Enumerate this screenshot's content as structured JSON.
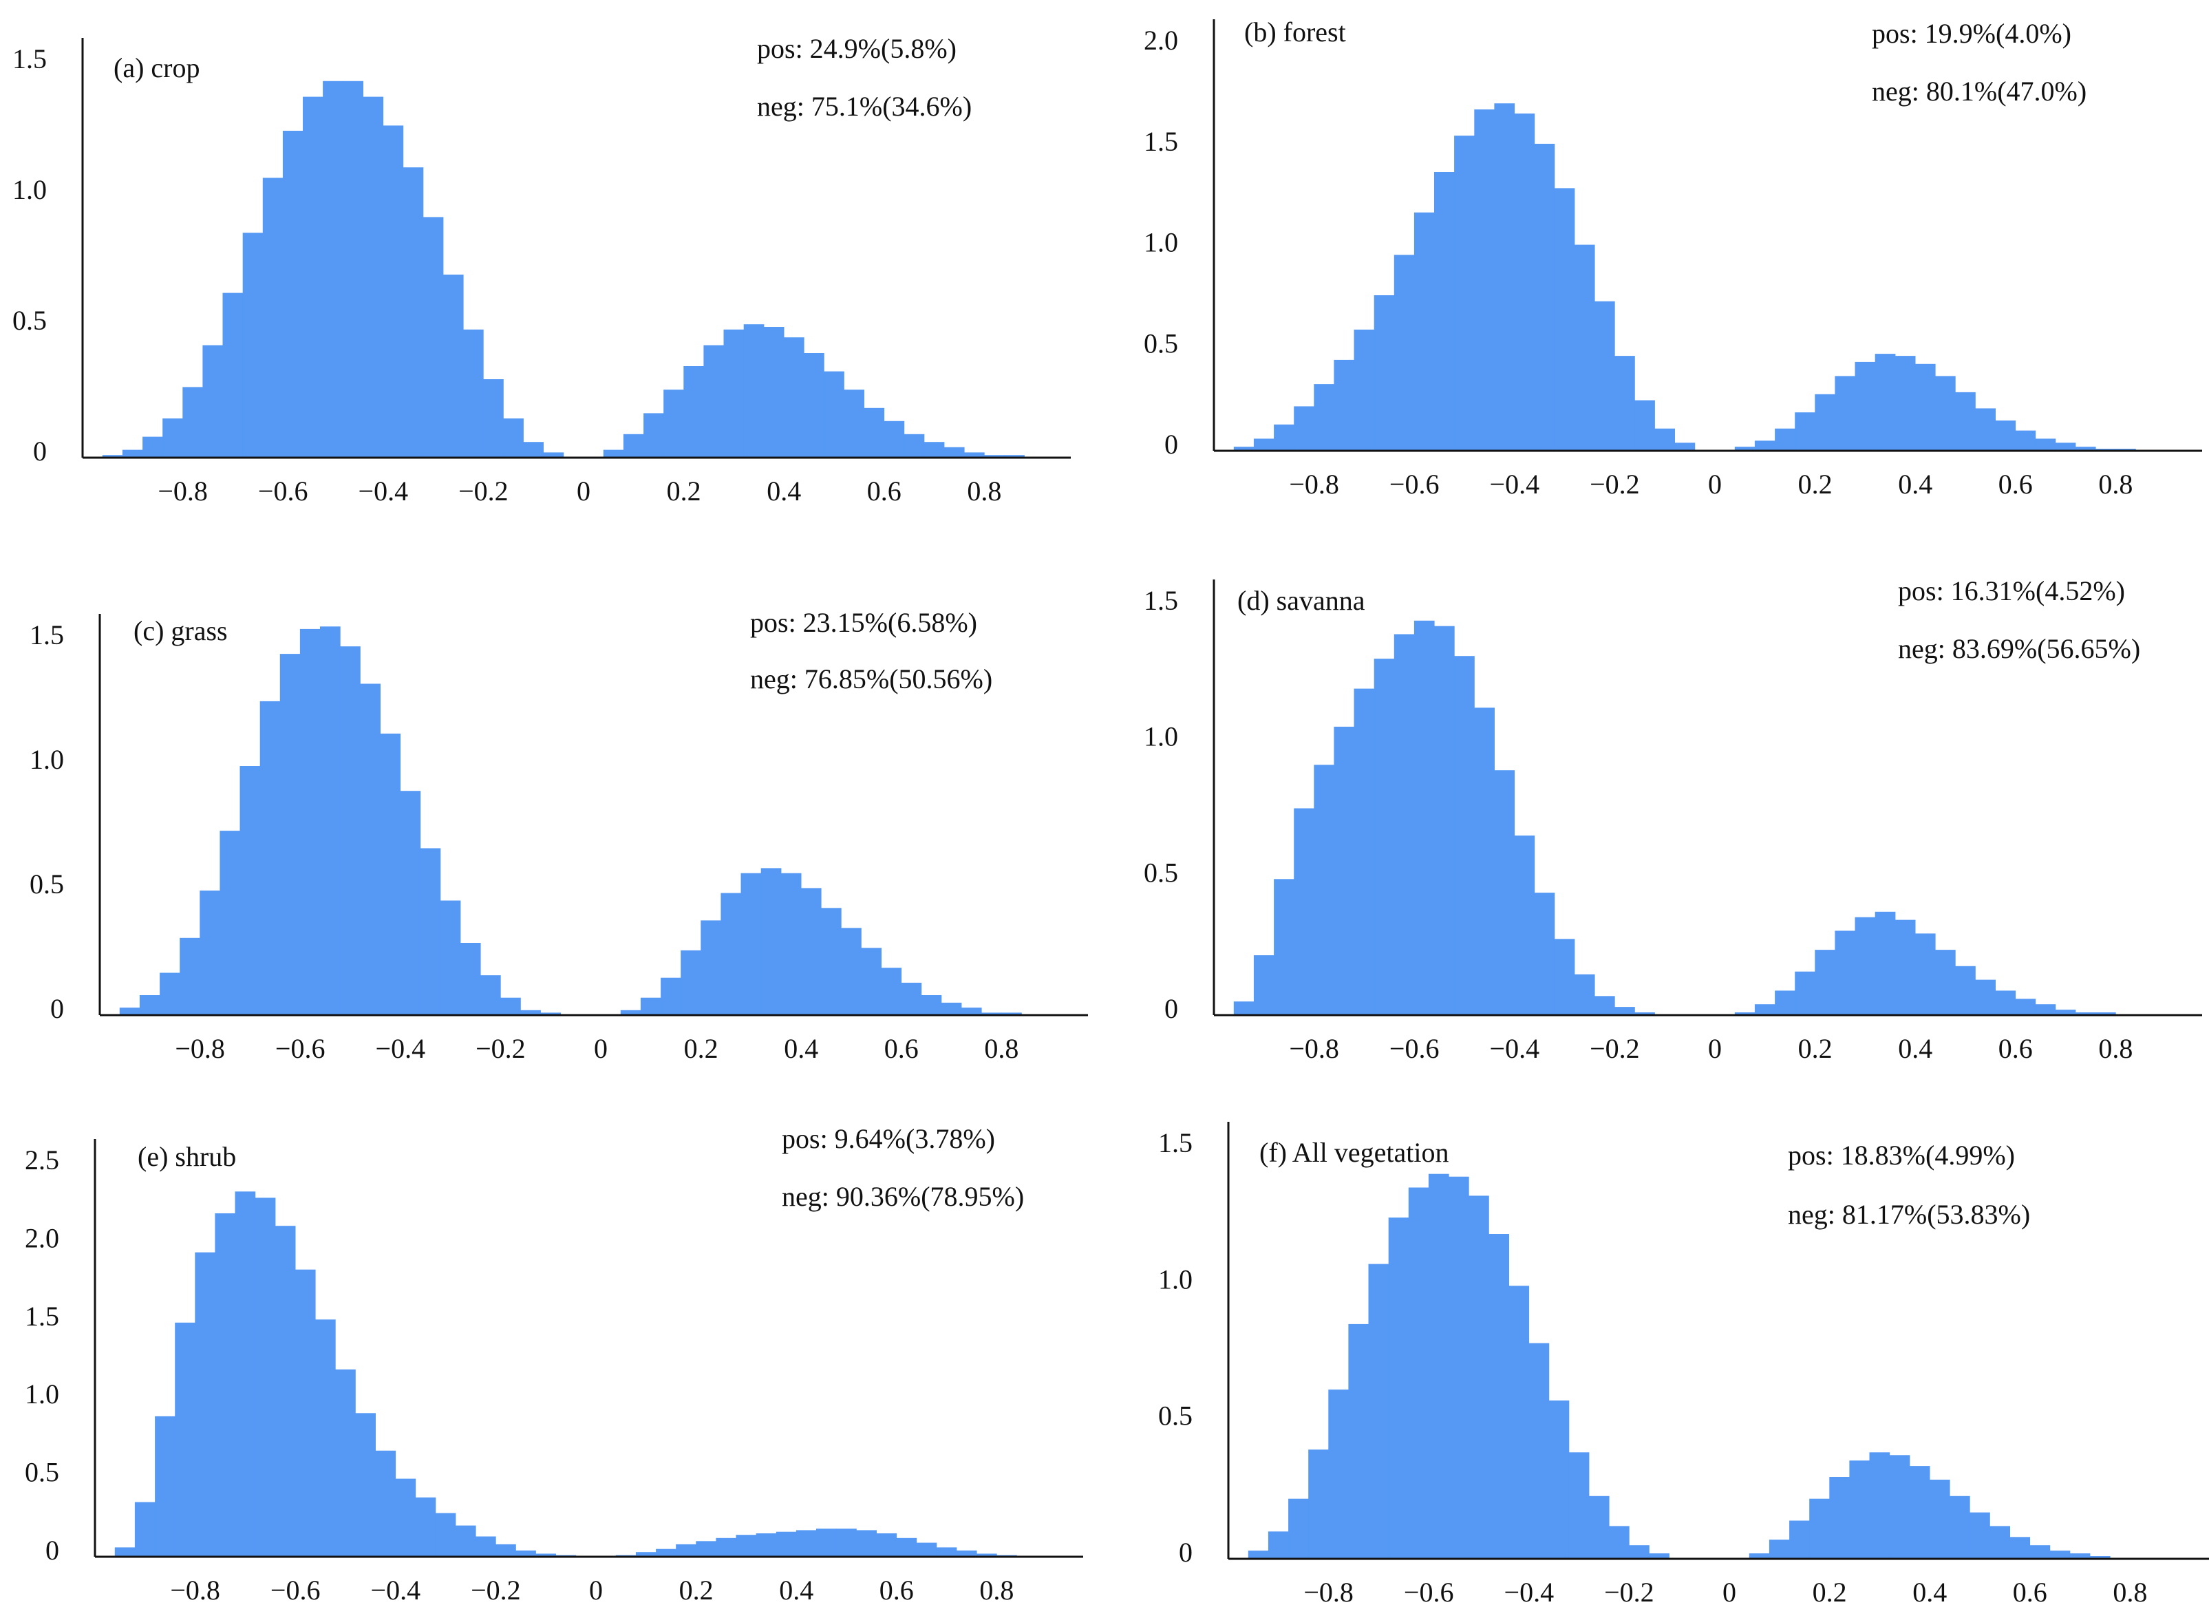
{
  "figure": {
    "bar_color": "#5599f5",
    "axis_color": "#111111"
  },
  "chart_data": [
    {
      "type": "bar",
      "panel": "a",
      "title": "(a) crop",
      "annotations": [
        "pos: 24.9%(5.8%)",
        "neg: 75.1%(34.6%)"
      ],
      "xlim": [
        -1,
        1
      ],
      "ylim": [
        0,
        1.5
      ],
      "xticks": [
        "-0.8",
        "-0.6",
        "-0.4",
        "-0.2",
        "0",
        "0.2",
        "0.4",
        "0.6",
        "0.8"
      ],
      "yticks": [
        "0",
        "0.5",
        "1.0",
        "1.5"
      ],
      "x": [
        -0.94,
        -0.9,
        -0.86,
        -0.82,
        -0.78,
        -0.74,
        -0.7,
        -0.66,
        -0.62,
        -0.58,
        -0.54,
        -0.5,
        -0.46,
        -0.42,
        -0.38,
        -0.34,
        -0.3,
        -0.26,
        -0.22,
        -0.18,
        -0.14,
        -0.1,
        -0.06,
        0.06,
        0.1,
        0.14,
        0.18,
        0.22,
        0.26,
        0.3,
        0.34,
        0.38,
        0.42,
        0.46,
        0.5,
        0.54,
        0.58,
        0.62,
        0.66,
        0.7,
        0.74,
        0.78,
        0.82,
        0.86
      ],
      "values": [
        0.01,
        0.03,
        0.08,
        0.15,
        0.27,
        0.43,
        0.63,
        0.86,
        1.07,
        1.25,
        1.38,
        1.44,
        1.44,
        1.38,
        1.27,
        1.11,
        0.92,
        0.7,
        0.49,
        0.3,
        0.15,
        0.06,
        0.02,
        0.03,
        0.09,
        0.17,
        0.26,
        0.35,
        0.43,
        0.49,
        0.51,
        0.5,
        0.46,
        0.4,
        0.33,
        0.26,
        0.19,
        0.14,
        0.09,
        0.06,
        0.04,
        0.02,
        0.01,
        0.01
      ]
    },
    {
      "type": "bar",
      "panel": "b",
      "title": "(b) forest",
      "annotations": [
        "pos: 19.9%(4.0%)",
        "neg: 80.1%(47.0%)"
      ],
      "xlim": [
        -1,
        1
      ],
      "ylim": [
        0,
        2.0
      ],
      "xticks": [
        "-0.8",
        "-0.6",
        "-0.4",
        "-0.2",
        "0",
        "0.2",
        "0.4",
        "0.6",
        "0.8"
      ],
      "yticks": [
        "0",
        "0.5",
        "1.0",
        "1.5",
        "2.0"
      ],
      "x": [
        -0.94,
        -0.9,
        -0.86,
        -0.82,
        -0.78,
        -0.74,
        -0.7,
        -0.66,
        -0.62,
        -0.58,
        -0.54,
        -0.5,
        -0.46,
        -0.42,
        -0.38,
        -0.34,
        -0.3,
        -0.26,
        -0.22,
        -0.18,
        -0.14,
        -0.1,
        -0.06,
        0.06,
        0.1,
        0.14,
        0.18,
        0.22,
        0.26,
        0.3,
        0.34,
        0.38,
        0.42,
        0.46,
        0.5,
        0.54,
        0.58,
        0.62,
        0.66,
        0.7,
        0.74,
        0.78,
        0.82,
        0.86
      ],
      "values": [
        0.02,
        0.06,
        0.13,
        0.22,
        0.33,
        0.45,
        0.6,
        0.77,
        0.97,
        1.18,
        1.38,
        1.56,
        1.69,
        1.72,
        1.67,
        1.52,
        1.3,
        1.02,
        0.74,
        0.47,
        0.25,
        0.11,
        0.04,
        0.02,
        0.05,
        0.11,
        0.19,
        0.28,
        0.37,
        0.44,
        0.48,
        0.47,
        0.43,
        0.37,
        0.29,
        0.21,
        0.15,
        0.1,
        0.06,
        0.04,
        0.02,
        0.01,
        0.01,
        0.0
      ]
    },
    {
      "type": "bar",
      "panel": "c",
      "title": "(c) grass",
      "annotations": [
        "pos: 23.15%(6.58%)",
        "neg: 76.85%(50.56%)"
      ],
      "xlim": [
        -1,
        1
      ],
      "ylim": [
        0,
        1.5
      ],
      "xticks": [
        "-0.8",
        "-0.6",
        "-0.4",
        "-0.2",
        "0",
        "0.2",
        "0.4",
        "0.6",
        "0.8"
      ],
      "yticks": [
        "0",
        "0.5",
        "1.0",
        "1.5"
      ],
      "x": [
        -0.94,
        -0.9,
        -0.86,
        -0.82,
        -0.78,
        -0.74,
        -0.7,
        -0.66,
        -0.62,
        -0.58,
        -0.54,
        -0.5,
        -0.46,
        -0.42,
        -0.38,
        -0.34,
        -0.3,
        -0.26,
        -0.22,
        -0.18,
        -0.14,
        -0.1,
        -0.06,
        0.06,
        0.1,
        0.14,
        0.18,
        0.22,
        0.26,
        0.3,
        0.34,
        0.38,
        0.42,
        0.46,
        0.5,
        0.54,
        0.58,
        0.62,
        0.66,
        0.7,
        0.74,
        0.78,
        0.82,
        0.86
      ],
      "values": [
        0.03,
        0.08,
        0.17,
        0.31,
        0.5,
        0.74,
        1.0,
        1.26,
        1.45,
        1.55,
        1.56,
        1.48,
        1.33,
        1.13,
        0.9,
        0.67,
        0.46,
        0.29,
        0.16,
        0.07,
        0.02,
        0.01,
        0.0,
        0.02,
        0.07,
        0.15,
        0.26,
        0.38,
        0.49,
        0.57,
        0.59,
        0.57,
        0.51,
        0.43,
        0.35,
        0.27,
        0.19,
        0.13,
        0.08,
        0.05,
        0.03,
        0.01,
        0.01,
        0.0
      ]
    },
    {
      "type": "bar",
      "panel": "d",
      "title": "(d) savanna",
      "annotations": [
        "pos: 16.31%(4.52%)",
        "neg: 83.69%(56.65%)"
      ],
      "xlim": [
        -1,
        1
      ],
      "ylim": [
        0,
        1.5
      ],
      "xticks": [
        "-0.8",
        "-0.6",
        "-0.4",
        "-0.2",
        "0",
        "0.2",
        "0.4",
        "0.6",
        "0.8"
      ],
      "yticks": [
        "0",
        "0.5",
        "1.0",
        "1.5"
      ],
      "x": [
        -0.94,
        -0.9,
        -0.86,
        -0.82,
        -0.78,
        -0.74,
        -0.7,
        -0.66,
        -0.62,
        -0.58,
        -0.54,
        -0.5,
        -0.46,
        -0.42,
        -0.38,
        -0.34,
        -0.3,
        -0.26,
        -0.22,
        -0.18,
        -0.14,
        -0.1,
        -0.06,
        0.06,
        0.1,
        0.14,
        0.18,
        0.22,
        0.26,
        0.3,
        0.34,
        0.38,
        0.42,
        0.46,
        0.5,
        0.54,
        0.58,
        0.62,
        0.66,
        0.7,
        0.74,
        0.78,
        0.82,
        0.86
      ],
      "values": [
        0.05,
        0.22,
        0.5,
        0.76,
        0.92,
        1.06,
        1.2,
        1.31,
        1.4,
        1.45,
        1.43,
        1.32,
        1.13,
        0.9,
        0.66,
        0.45,
        0.28,
        0.15,
        0.07,
        0.03,
        0.01,
        0.0,
        0.0,
        0.01,
        0.04,
        0.09,
        0.16,
        0.24,
        0.31,
        0.36,
        0.38,
        0.35,
        0.3,
        0.24,
        0.18,
        0.13,
        0.09,
        0.06,
        0.04,
        0.02,
        0.01,
        0.01,
        0.0,
        0.0
      ]
    },
    {
      "type": "bar",
      "panel": "e",
      "title": "(e) shrub",
      "annotations": [
        "pos: 9.64%(3.78%)",
        "neg: 90.36%(78.95%)"
      ],
      "xlim": [
        -1,
        1
      ],
      "ylim": [
        0,
        2.5
      ],
      "xticks": [
        "-0.8",
        "-0.6",
        "-0.4",
        "-0.2",
        "0",
        "0.2",
        "0.4",
        "0.6",
        "0.8"
      ],
      "yticks": [
        "0",
        "0.5",
        "1.0",
        "1.5",
        "2.0",
        "2.5"
      ],
      "x": [
        -0.94,
        -0.9,
        -0.86,
        -0.82,
        -0.78,
        -0.74,
        -0.7,
        -0.66,
        -0.62,
        -0.58,
        -0.54,
        -0.5,
        -0.46,
        -0.42,
        -0.38,
        -0.34,
        -0.3,
        -0.26,
        -0.22,
        -0.18,
        -0.14,
        -0.1,
        -0.06,
        0.06,
        0.1,
        0.14,
        0.18,
        0.22,
        0.26,
        0.3,
        0.34,
        0.38,
        0.42,
        0.46,
        0.5,
        0.54,
        0.58,
        0.62,
        0.66,
        0.7,
        0.74,
        0.78,
        0.82,
        0.86
      ],
      "values": [
        0.06,
        0.35,
        0.9,
        1.5,
        1.95,
        2.2,
        2.34,
        2.3,
        2.12,
        1.84,
        1.52,
        1.2,
        0.92,
        0.68,
        0.5,
        0.38,
        0.28,
        0.2,
        0.13,
        0.08,
        0.04,
        0.02,
        0.01,
        0.01,
        0.03,
        0.05,
        0.08,
        0.1,
        0.12,
        0.14,
        0.15,
        0.16,
        0.17,
        0.18,
        0.18,
        0.17,
        0.15,
        0.12,
        0.09,
        0.06,
        0.04,
        0.02,
        0.01,
        0.0
      ]
    },
    {
      "type": "bar",
      "panel": "f",
      "title": "(f) All vegetation",
      "annotations": [
        "pos: 18.83%(4.99%)",
        "neg: 81.17%(53.83%)"
      ],
      "xlim": [
        -1,
        1
      ],
      "ylim": [
        0,
        1.5
      ],
      "xticks": [
        "-0.8",
        "-0.6",
        "-0.4",
        "-0.2",
        "0",
        "0.2",
        "0.4",
        "0.6",
        "0.8"
      ],
      "yticks": [
        "0",
        "0.5",
        "1.0",
        "1.5"
      ],
      "x": [
        -0.94,
        -0.9,
        -0.86,
        -0.82,
        -0.78,
        -0.74,
        -0.7,
        -0.66,
        -0.62,
        -0.58,
        -0.54,
        -0.5,
        -0.46,
        -0.42,
        -0.38,
        -0.34,
        -0.3,
        -0.26,
        -0.22,
        -0.18,
        -0.14,
        -0.1,
        -0.06,
        0.06,
        0.1,
        0.14,
        0.18,
        0.22,
        0.26,
        0.3,
        0.34,
        0.38,
        0.42,
        0.46,
        0.5,
        0.54,
        0.58,
        0.62,
        0.66,
        0.7,
        0.74,
        0.78,
        0.82,
        0.86
      ],
      "values": [
        0.03,
        0.1,
        0.22,
        0.4,
        0.62,
        0.86,
        1.08,
        1.25,
        1.36,
        1.41,
        1.4,
        1.33,
        1.19,
        1.0,
        0.79,
        0.58,
        0.39,
        0.23,
        0.12,
        0.05,
        0.02,
        0.0,
        0.0,
        0.02,
        0.07,
        0.14,
        0.22,
        0.3,
        0.36,
        0.39,
        0.38,
        0.34,
        0.29,
        0.23,
        0.17,
        0.12,
        0.08,
        0.05,
        0.03,
        0.02,
        0.01,
        0.0,
        0.0,
        0.0
      ]
    }
  ]
}
